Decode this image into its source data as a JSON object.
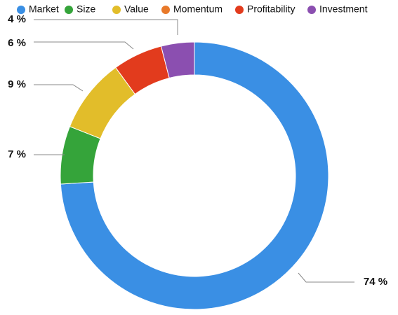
{
  "chart_data": {
    "type": "donut",
    "categories": [
      "Market",
      "Size",
      "Value",
      "Momentum",
      "Profitability",
      "Investment"
    ],
    "values": [
      74,
      7,
      9,
      0,
      6,
      4
    ],
    "value_labels": [
      "74 %",
      "7 %",
      "9 %",
      null,
      "6 %",
      "4 %"
    ],
    "colors": [
      "#3a8fe4",
      "#35a43a",
      "#e2bd2a",
      "#e8792a",
      "#e23b1d",
      "#8b4fb0"
    ],
    "legend": "top"
  }
}
